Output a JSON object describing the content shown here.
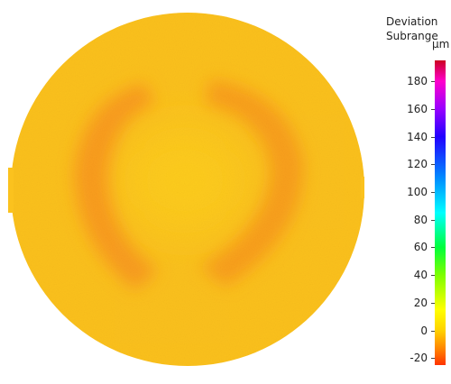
{
  "chart_data": {
    "type": "heatmap",
    "legend_title": [
      "Deviation",
      "Subrange"
    ],
    "unit": "µm",
    "scale_ticks": [
      180,
      160,
      140,
      120,
      100,
      80,
      60,
      40,
      20,
      0,
      -20
    ],
    "scale_range": [
      -25,
      195
    ],
    "colorbar_stops": [
      {
        "value": -25,
        "color": "#ff3300"
      },
      {
        "value": -15,
        "color": "#ff7a00"
      },
      {
        "value": 0,
        "color": "#ffd200"
      },
      {
        "value": 15,
        "color": "#ffff00"
      },
      {
        "value": 40,
        "color": "#7dff00"
      },
      {
        "value": 60,
        "color": "#00ff3c"
      },
      {
        "value": 85,
        "color": "#00ffff"
      },
      {
        "value": 110,
        "color": "#008cff"
      },
      {
        "value": 140,
        "color": "#2200ff"
      },
      {
        "value": 160,
        "color": "#9900ff"
      },
      {
        "value": 180,
        "color": "#ff00cc"
      },
      {
        "value": 195,
        "color": "#cc0020"
      }
    ],
    "surface": {
      "shape": "disc",
      "base_color": "#fbc21e",
      "center_color": "#ffd31a",
      "hotspot_color": "#f77a1f"
    }
  }
}
